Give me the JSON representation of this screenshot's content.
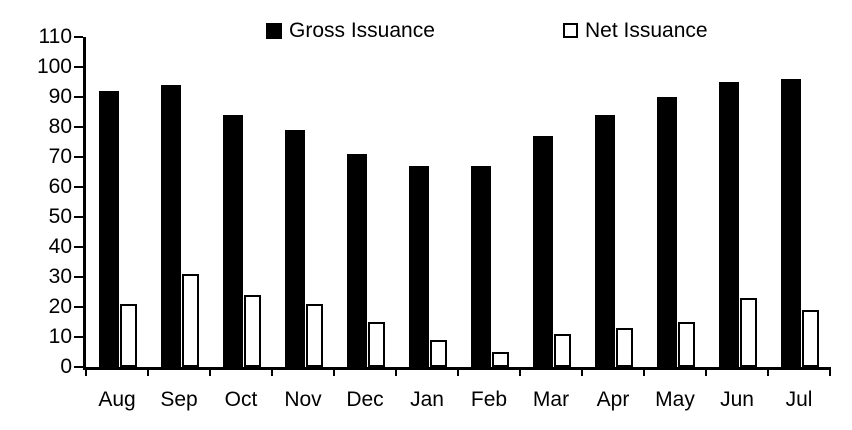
{
  "chart_data": {
    "type": "bar",
    "title": "",
    "xlabel": "",
    "ylabel": "",
    "grid": false,
    "legend_position": "top",
    "categories": [
      "Aug",
      "Sep",
      "Oct",
      "Nov",
      "Dec",
      "Jan",
      "Feb",
      "Mar",
      "Apr",
      "May",
      "Jun",
      "Jul"
    ],
    "series": [
      {
        "name": "Gross Issuance",
        "style": "solid",
        "color": "#000000",
        "values": [
          92,
          94,
          84,
          79,
          71,
          67,
          67,
          77,
          84,
          90,
          95,
          96
        ]
      },
      {
        "name": "Net Issuance",
        "style": "outline",
        "color": "#ffffff",
        "border_color": "#000000",
        "values": [
          21,
          31,
          24,
          21,
          15,
          9,
          5,
          11,
          13,
          15,
          23,
          19
        ]
      }
    ],
    "ylim": [
      0,
      110
    ],
    "ytick_step": 10,
    "yticks": [
      0,
      10,
      20,
      30,
      40,
      50,
      60,
      70,
      80,
      90,
      100,
      110
    ]
  },
  "colors": {
    "background": "#ffffff",
    "axis": "#000000",
    "text": "#000000"
  }
}
